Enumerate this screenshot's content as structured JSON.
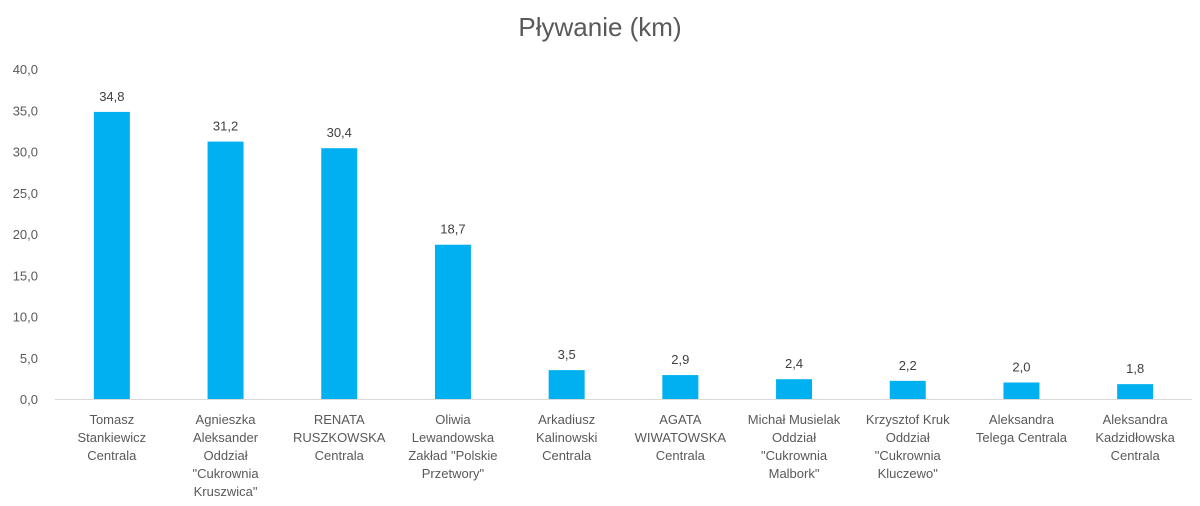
{
  "chart_data": {
    "type": "bar",
    "title": "Pływanie (km)",
    "xlabel": "",
    "ylabel": "",
    "ylim": [
      0,
      40
    ],
    "yticks": [
      "0,0",
      "5,0",
      "10,0",
      "15,0",
      "20,0",
      "25,0",
      "30,0",
      "35,0",
      "40,0"
    ],
    "grid": false,
    "legend": "none",
    "bar_color": "#00b0f0",
    "categories": [
      [
        "Tomasz",
        "Stankiewicz",
        "Centrala"
      ],
      [
        "Agnieszka",
        "Aleksander",
        "Oddział",
        "\"Cukrownia",
        "Kruszwica\""
      ],
      [
        "RENATA",
        "RUSZKOWSKA",
        "Centrala"
      ],
      [
        "Oliwia",
        "Lewandowska",
        "Zakład \"Polskie",
        "Przetwory\""
      ],
      [
        "Arkadiusz",
        "Kalinowski",
        "Centrala"
      ],
      [
        "AGATA",
        "WIWATOWSKA",
        "Centrala"
      ],
      [
        "Michał Musielak",
        "Oddział",
        "\"Cukrownia",
        "Malbork\""
      ],
      [
        "Krzysztof Kruk",
        "Oddział",
        "\"Cukrownia",
        "Kluczewo\""
      ],
      [
        "Aleksandra",
        "Telega Centrala"
      ],
      [
        "Aleksandra",
        "Kadzidłowska",
        "Centrala"
      ]
    ],
    "values": [
      34.8,
      31.2,
      30.4,
      18.7,
      3.5,
      2.9,
      2.4,
      2.2,
      2.0,
      1.8
    ],
    "data_labels": [
      "34,8",
      "31,2",
      "30,4",
      "18,7",
      "3,5",
      "2,9",
      "2,4",
      "2,2",
      "2,0",
      "1,8"
    ]
  }
}
